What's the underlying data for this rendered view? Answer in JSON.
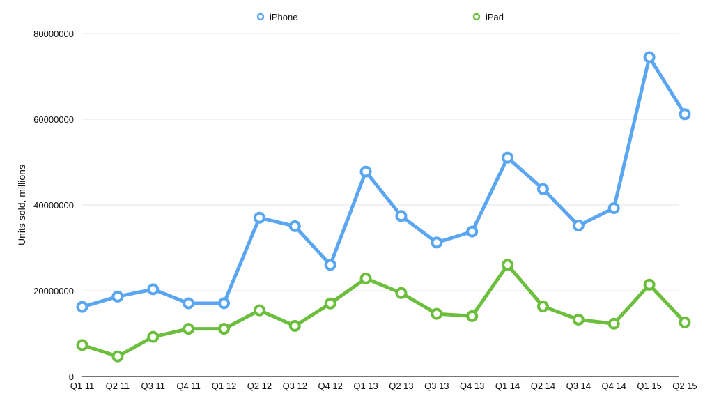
{
  "colors": {
    "iPhone": "#5aa6f0",
    "iPad": "#6cbf3c",
    "grid": "#e4e4e4",
    "axis": "#222222"
  },
  "chart_data": {
    "type": "line",
    "title": "",
    "xlabel": "",
    "ylabel": "Units sold, millions",
    "ylim": [
      0,
      80000000
    ],
    "yticks": [
      "0",
      "20000000",
      "40000000",
      "60000000",
      "80000000"
    ],
    "grid": true,
    "legend_position": "top-center",
    "categories": [
      "Q1 11",
      "Q2 11",
      "Q3 11",
      "Q4 11",
      "Q1 12",
      "Q2 12",
      "Q3 12",
      "Q4 12",
      "Q1 13",
      "Q2 13",
      "Q3 13",
      "Q4 13",
      "Q1 14",
      "Q2 14",
      "Q3 14",
      "Q4 14",
      "Q1 15",
      "Q2 15"
    ],
    "series": [
      {
        "name": "iPhone",
        "values": [
          16240000,
          18650000,
          20340000,
          17070000,
          17100000,
          37040000,
          35060000,
          26030000,
          47790000,
          37430000,
          31240000,
          33800000,
          51030000,
          43720000,
          35200000,
          39270000,
          74470000,
          61170000
        ]
      },
      {
        "name": "iPad",
        "values": [
          7330000,
          4690000,
          9250000,
          11120000,
          11120000,
          15430000,
          11800000,
          17040000,
          22860000,
          19480000,
          14620000,
          14080000,
          26040000,
          16350000,
          13280000,
          12320000,
          21420000,
          12620000
        ]
      }
    ]
  }
}
